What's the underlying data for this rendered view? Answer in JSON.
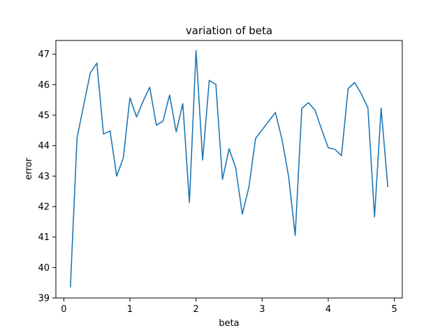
{
  "chart_data": {
    "type": "line",
    "title": "variation of beta",
    "xlabel": "beta",
    "ylabel": "error",
    "xlim": [
      -0.12,
      5.12
    ],
    "ylim": [
      39.0,
      47.45
    ],
    "xticks": [
      0,
      1,
      2,
      3,
      4,
      5
    ],
    "yticks": [
      39,
      40,
      41,
      42,
      43,
      44,
      45,
      46,
      47
    ],
    "grid": false,
    "line_color": "#1f77b4",
    "series": [
      {
        "x": [
          0.1,
          0.2,
          0.3,
          0.4,
          0.5,
          0.6,
          0.7,
          0.8,
          0.9,
          1.0,
          1.1,
          1.2,
          1.3,
          1.4,
          1.5,
          1.6,
          1.7,
          1.8,
          1.9,
          2.0,
          2.1,
          2.2,
          2.3,
          2.4,
          2.5,
          2.6,
          2.7,
          2.8,
          2.9,
          3.0,
          3.1,
          3.2,
          3.3,
          3.4,
          3.5,
          3.6,
          3.7,
          3.8,
          3.9,
          4.0,
          4.1,
          4.2,
          4.3,
          4.4,
          4.5,
          4.6,
          4.7,
          4.8,
          4.9
        ],
        "values": [
          39.37,
          44.25,
          45.32,
          46.38,
          46.71,
          44.38,
          44.48,
          43.0,
          43.6,
          45.57,
          44.94,
          45.46,
          45.92,
          44.67,
          44.8,
          45.66,
          44.45,
          45.38,
          42.13,
          47.12,
          43.53,
          46.14,
          46.01,
          42.89,
          43.9,
          43.27,
          41.75,
          42.64,
          44.23,
          44.52,
          44.8,
          45.09,
          44.21,
          42.99,
          41.05,
          45.22,
          45.41,
          45.16,
          44.53,
          43.93,
          43.88,
          43.67,
          45.87,
          46.07,
          45.7,
          45.24,
          41.66,
          45.23,
          42.66
        ]
      }
    ]
  }
}
